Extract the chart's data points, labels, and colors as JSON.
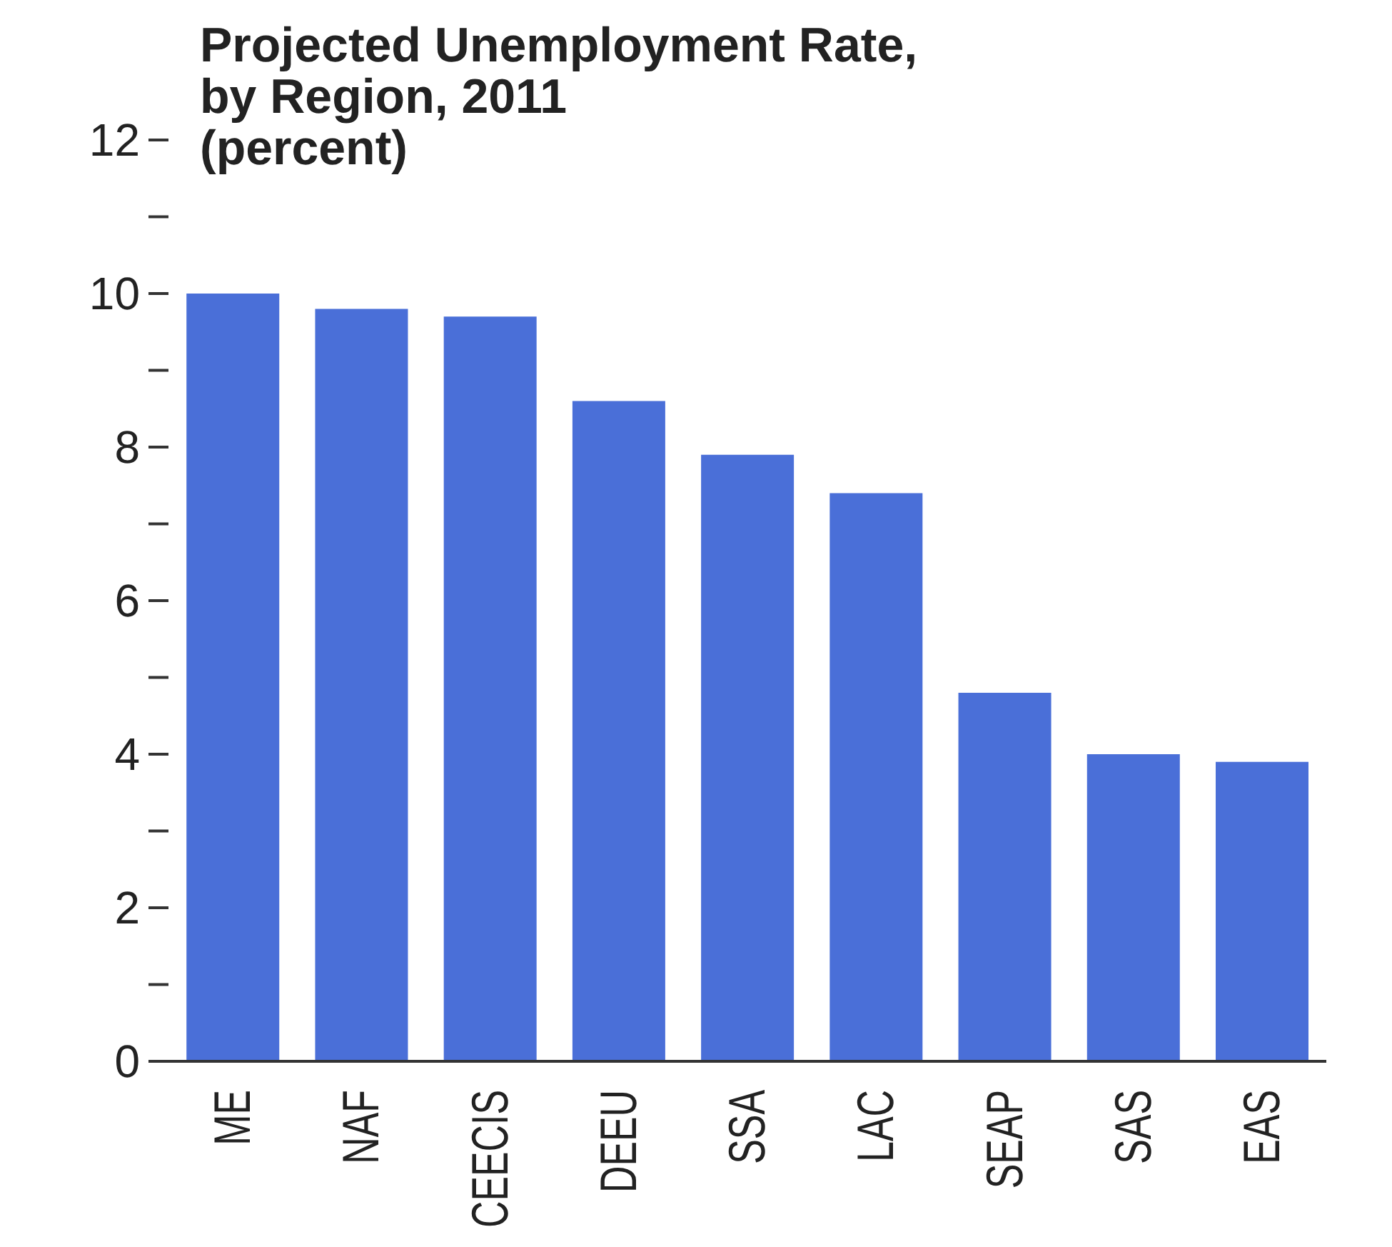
{
  "chart_data": {
    "type": "bar",
    "title": "Projected Unemployment Rate,\nby Region, 2011\n(percent)",
    "categories": [
      "ME",
      "NAF",
      "CEECIS",
      "DEEU",
      "SSA",
      "LAC",
      "SEAP",
      "SAS",
      "EAS"
    ],
    "values": [
      10.0,
      9.8,
      9.7,
      8.6,
      7.9,
      7.4,
      4.8,
      4.0,
      3.9
    ],
    "color": "#4a6fd8",
    "ylim": [
      0,
      12
    ],
    "yticks": [
      0,
      {
        "value": 1,
        "label": null
      },
      2,
      {
        "value": 3,
        "label": null
      },
      4,
      {
        "value": 5,
        "label": null
      },
      6,
      {
        "value": 7,
        "label": null
      },
      8,
      {
        "value": 9,
        "label": null
      },
      10,
      {
        "value": 11,
        "label": null
      },
      12
    ],
    "grid": false,
    "legend": false
  }
}
